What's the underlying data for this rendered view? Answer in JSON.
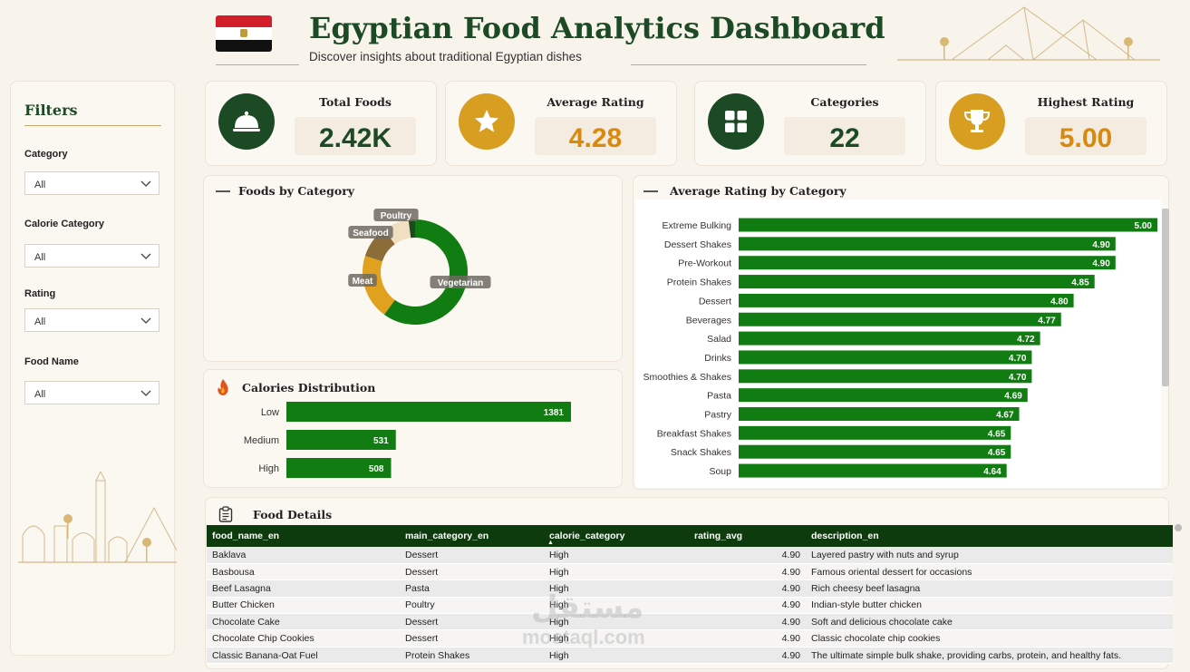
{
  "header": {
    "title": "Egyptian Food Analytics Dashboard",
    "subtitle": "Discover insights about traditional Egyptian dishes"
  },
  "colors": {
    "dark_green": "#1c4a25",
    "bar_green": "#117c11",
    "gold": "#d89e22",
    "table_header": "#0e3b0e"
  },
  "filters": {
    "title": "Filters",
    "items": [
      {
        "label": "Category",
        "value": "All"
      },
      {
        "label": "Calorie Category",
        "value": "All"
      },
      {
        "label": "Rating",
        "value": "All"
      },
      {
        "label": "Food Name",
        "value": "All"
      }
    ]
  },
  "kpis": [
    {
      "label": "Total Foods",
      "value": "2.42K",
      "icon": "cloche-icon",
      "color": "#1c4a25"
    },
    {
      "label": "Average Rating",
      "value": "4.28",
      "icon": "star-icon",
      "color": "#d89e22"
    },
    {
      "label": "Categories",
      "value": "22",
      "icon": "grid-icon",
      "color": "#1c4a25"
    },
    {
      "label": "Highest Rating",
      "value": "5.00",
      "icon": "trophy-icon",
      "color": "#d89e22"
    }
  ],
  "chart_data": [
    {
      "type": "pie",
      "title": "Foods by Category",
      "slices": [
        {
          "label": "Vegetarian",
          "value": 60,
          "color": "#117c11"
        },
        {
          "label": "Meat",
          "value": 20,
          "color": "#e0a21e"
        },
        {
          "label": "Seafood",
          "value": 10,
          "color": "#8c6d3a"
        },
        {
          "label": "Poultry",
          "value": 8,
          "color": "#f0dfc0"
        },
        {
          "label": "",
          "value": 2,
          "color": "#1f4a1f"
        }
      ]
    },
    {
      "type": "bar",
      "orientation": "horizontal",
      "title": "Calories Distribution",
      "categories": [
        "Low",
        "Medium",
        "High"
      ],
      "values": [
        1381,
        531,
        508
      ],
      "xlim": [
        0,
        1381
      ]
    },
    {
      "type": "bar",
      "orientation": "horizontal",
      "title": "Average Rating by Category",
      "categories": [
        "Extreme Bulking",
        "Dessert Shakes",
        "Pre-Workout",
        "Protein Shakes",
        "Dessert",
        "Beverages",
        "Salad",
        "Drinks",
        "Smoothies & Shakes",
        "Pasta",
        "Pastry",
        "Breakfast Shakes",
        "Snack Shakes",
        "Soup"
      ],
      "values": [
        5.0,
        4.9,
        4.9,
        4.85,
        4.8,
        4.77,
        4.72,
        4.7,
        4.7,
        4.69,
        4.67,
        4.65,
        4.65,
        4.64
      ],
      "labels": [
        "5.00",
        "4.90",
        "4.90",
        "4.85",
        "4.80",
        "4.77",
        "4.72",
        "4.70",
        "4.70",
        "4.69",
        "4.67",
        "4.65",
        "4.65",
        "4.64"
      ],
      "xlim": [
        4.0,
        5.0
      ]
    }
  ],
  "table": {
    "title": "Food Details",
    "columns": [
      "food_name_en",
      "main_category_en",
      "calorie_category",
      "rating_avg",
      "description_en"
    ],
    "rows": [
      [
        "Baklava",
        "Dessert",
        "High",
        "4.90",
        "Layered pastry with nuts and syrup"
      ],
      [
        "Basbousa",
        "Dessert",
        "High",
        "4.90",
        "Famous oriental dessert for occasions"
      ],
      [
        "Beef Lasagna",
        "Pasta",
        "High",
        "4.90",
        "Rich cheesy beef lasagna"
      ],
      [
        "Butter Chicken",
        "Poultry",
        "High",
        "4.90",
        "Indian-style butter chicken"
      ],
      [
        "Chocolate Cake",
        "Dessert",
        "High",
        "4.90",
        "Soft and delicious chocolate cake"
      ],
      [
        "Chocolate Chip Cookies",
        "Dessert",
        "High",
        "4.90",
        "Classic chocolate chip cookies"
      ],
      [
        "Classic Banana-Oat Fuel",
        "Protein Shakes",
        "High",
        "4.90",
        "The ultimate simple bulk shake, providing carbs, protein, and healthy fats."
      ]
    ]
  },
  "watermark": {
    "line1": "مستقل",
    "line2": "mostaql.com"
  }
}
